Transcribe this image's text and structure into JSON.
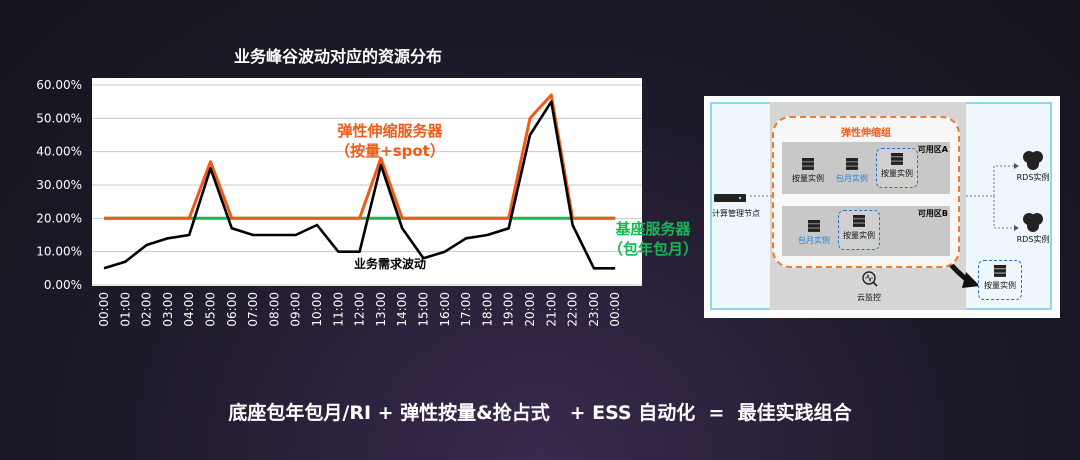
{
  "slide": {
    "bottom_formula": "底座包年包月/RI + 弹性按量&抢占式   + ESS 自动化  =  最佳实践组合"
  },
  "chart_data": {
    "type": "line",
    "title": "业务峰谷波动对应的资源分布",
    "categories": [
      "00:00",
      "01:00",
      "02:00",
      "03:00",
      "04:00",
      "05:00",
      "06:00",
      "07:00",
      "08:00",
      "09:00",
      "10:00",
      "11:00",
      "12:00",
      "13:00",
      "14:00",
      "15:00",
      "16:00",
      "17:00",
      "18:00",
      "19:00",
      "20:00",
      "21:00",
      "22:00",
      "23:00",
      "00:00"
    ],
    "yticks": [
      "0.00%",
      "10.00%",
      "20.00%",
      "30.00%",
      "40.00%",
      "50.00%",
      "60.00%"
    ],
    "ylim": [
      0,
      60
    ],
    "grid": true,
    "series": [
      {
        "name": "业务需求波动",
        "color": "#000000",
        "values": [
          5,
          7,
          12,
          14,
          15,
          35,
          17,
          15,
          15,
          15,
          18,
          10,
          10,
          36,
          17,
          8,
          10,
          14,
          15,
          17,
          45,
          55,
          18,
          5,
          5
        ]
      },
      {
        "name": "弹性伸缩服务器",
        "color": "#f05a14",
        "values": [
          20,
          20,
          20,
          20,
          20,
          37,
          20,
          20,
          20,
          20,
          20,
          20,
          20,
          38,
          20,
          20,
          20,
          20,
          20,
          20,
          50,
          57,
          20,
          20,
          20
        ]
      },
      {
        "name": "基座服务器",
        "color": "#16b855",
        "values": [
          20,
          20,
          20,
          20,
          20,
          20,
          20,
          20,
          20,
          20,
          20,
          20,
          20,
          20,
          20,
          20,
          20,
          20,
          20,
          20,
          20,
          20,
          20,
          20,
          20
        ]
      }
    ],
    "annotations": {
      "elastic_line1": "弹性伸缩服务器",
      "elastic_line2": "（按量+spot）",
      "base_line1": "基座服务器",
      "base_line2": "（包年包月）",
      "demand": "业务需求波动"
    }
  },
  "diagram": {
    "asg_title": "弹性伸缩组",
    "zone_a": "可用区A",
    "zone_b": "可用区B",
    "zone_a_instances": [
      "按量实例",
      "包月实例",
      "按量实例"
    ],
    "zone_b_instances": [
      "包月实例",
      "按量实例"
    ],
    "compute_node": "计算管理节点",
    "rds1": "RDS实例",
    "rds2": "RDS实例",
    "monitor": "云监控",
    "scaled_instance": "按量实例"
  }
}
